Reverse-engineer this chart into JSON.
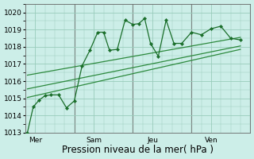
{
  "xlabel": "Pression niveau de la mer( hPa )",
  "bg_color": "#cceee8",
  "grid_color": "#99ccbb",
  "line_color": "#1a6e2a",
  "trend_color": "#2d8a3e",
  "ylim": [
    1013,
    1020.5
  ],
  "yticks": [
    1013,
    1014,
    1015,
    1016,
    1017,
    1018,
    1019,
    1020
  ],
  "day_labels": [
    "Mer",
    "Sam",
    "Jeu",
    "Ven"
  ],
  "day_positions": [
    0.5,
    3.5,
    6.5,
    9.5
  ],
  "vline_positions": [
    2.5,
    5.5,
    8.5
  ],
  "xlim": [
    0,
    11.5
  ],
  "series1_x": [
    0.1,
    0.4,
    0.7,
    1.0,
    1.3,
    1.7,
    2.1,
    2.5,
    2.9,
    3.3,
    3.7,
    4.0,
    4.3,
    4.7,
    5.1,
    5.5,
    5.8,
    6.1,
    6.4,
    6.8,
    7.2,
    7.6,
    8.0,
    8.5,
    9.0,
    9.5,
    10.0,
    10.5,
    11.0
  ],
  "series1_y": [
    1013.0,
    1014.5,
    1014.9,
    1015.15,
    1015.2,
    1015.2,
    1014.45,
    1014.85,
    1016.9,
    1017.8,
    1018.85,
    1018.85,
    1017.8,
    1017.85,
    1019.55,
    1019.3,
    1019.35,
    1019.65,
    1018.2,
    1017.45,
    1019.55,
    1018.2,
    1018.2,
    1018.85,
    1018.7,
    1019.05,
    1019.2,
    1018.5,
    1018.4
  ],
  "trend1_x": [
    0.1,
    11.0
  ],
  "trend1_y": [
    1015.05,
    1017.85
  ],
  "trend2_x": [
    0.1,
    11.0
  ],
  "trend2_y": [
    1015.55,
    1018.05
  ],
  "trend3_x": [
    0.1,
    11.0
  ],
  "trend3_y": [
    1016.35,
    1018.55
  ],
  "xlabel_fontsize": 8.5,
  "tick_fontsize": 6.5
}
